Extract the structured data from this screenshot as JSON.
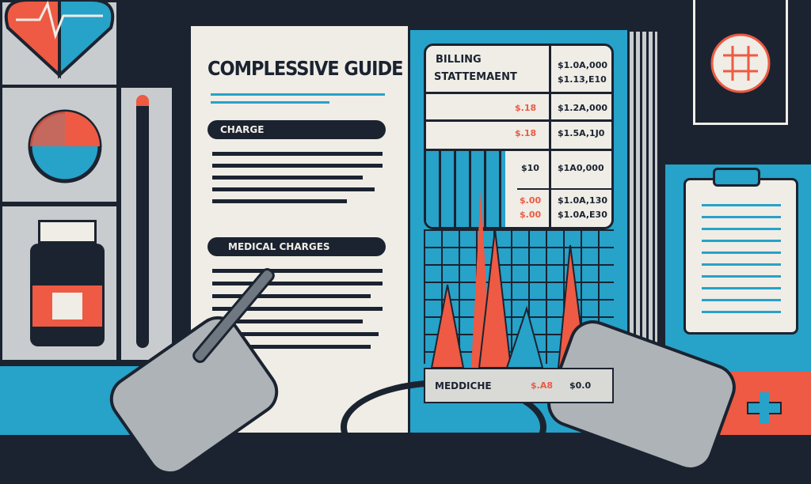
{
  "guide": {
    "title": "COMPLESSIVE GUIDE",
    "section1": "CHARGE",
    "section2": "MEDICAL CHARGES"
  },
  "statement": {
    "title_line1": "BILLING",
    "title_line2": "STATTEMAENT",
    "header_amounts": [
      "$1.0A,000",
      "$1.13,E10"
    ],
    "rows": [
      {
        "charge": "$.18",
        "amount": "$1.2A,000"
      },
      {
        "charge": "$.18",
        "amount": "$1.5A,1J0"
      },
      {
        "charge": "$10",
        "amount": "$1A0,000"
      },
      {
        "charge": "$.00",
        "amount": "$1.0A,130"
      },
      {
        "charge": "$.00",
        "amount": "$1.0A,E30"
      }
    ],
    "footer_label": "MEDDICHE",
    "footer_charge": "$.A8",
    "footer_amount": "$0.0"
  },
  "colors": {
    "navy": "#1b2330",
    "blue": "#27a2c9",
    "coral": "#ee5a43",
    "paper": "#efede6"
  }
}
